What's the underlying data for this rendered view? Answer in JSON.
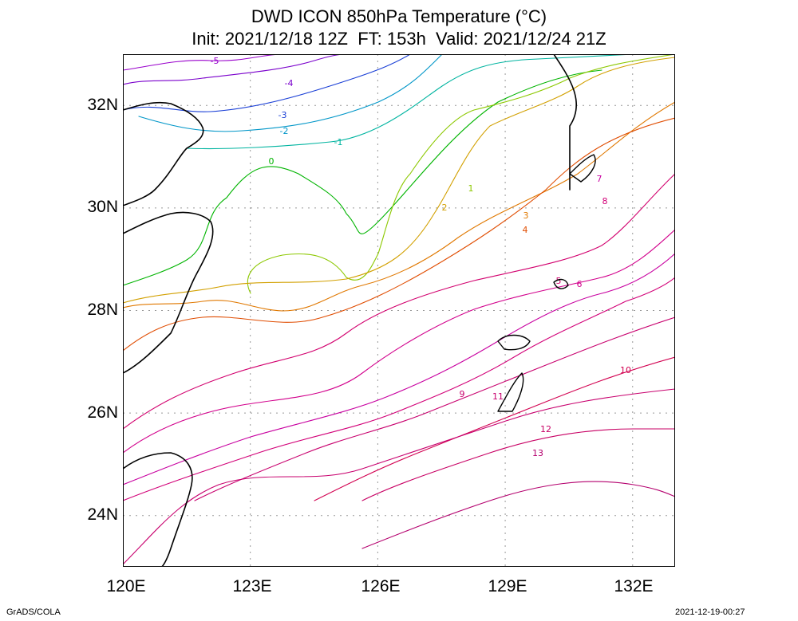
{
  "title": {
    "line1": "DWD ICON 850hPa Temperature (°C)",
    "line2": "Init: 2021/12/18 12Z  FT: 153h  Valid: 2021/12/24 21Z"
  },
  "axes": {
    "lat_labels": [
      "32N",
      "30N",
      "28N",
      "26N",
      "24N"
    ],
    "lon_labels": [
      "120E",
      "123E",
      "126E",
      "129E",
      "132E"
    ]
  },
  "footer": {
    "left": "GrADS/COLA",
    "right": "2021-12-19-00:27"
  },
  "map_data": {
    "projection": "latlon",
    "lon_range": [
      120,
      133
    ],
    "lat_range": [
      23,
      33
    ],
    "grid": true,
    "contour_interval": 1,
    "contour_colors": {
      "-5": "#9900cc",
      "-4": "#7a00cc",
      "-3": "#1a3fd6",
      "-2": "#0096c8",
      "-1": "#00b4a0",
      "0": "#00b400",
      "1": "#8cc800",
      "2": "#d2a000",
      "3": "#e07800",
      "4": "#e04c00",
      "5": "#d2006e",
      "6": "#d2008c",
      "7": "#c800a0",
      "8": "#d20078",
      "9": "#c8006e",
      "10": "#d20050",
      "11": "#c8006e",
      "12": "#c80064",
      "13": "#b4006e"
    },
    "contour_labels": [
      "-5",
      "-4",
      "-3",
      "-2",
      "-1",
      "0",
      "1",
      "2",
      "3",
      "4",
      "5",
      "6",
      "7",
      "8",
      "9",
      "10",
      "11",
      "12",
      "13"
    ]
  }
}
